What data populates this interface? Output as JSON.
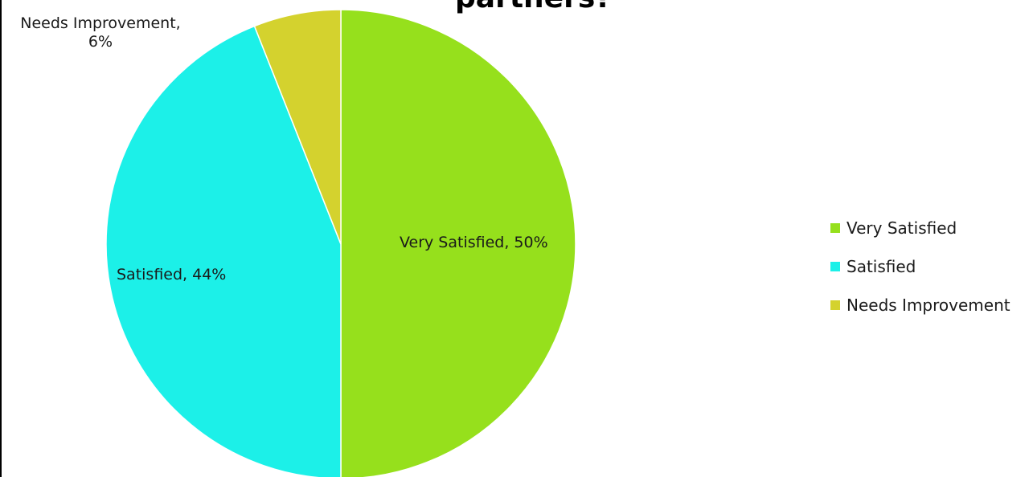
{
  "chart_data": {
    "type": "pie",
    "title": "partners?",
    "slices": [
      {
        "name": "Very Satisfied",
        "value": 50,
        "label": "Very Satisfied, 50%",
        "color": "#96e01c"
      },
      {
        "name": "Satisfied",
        "value": 44,
        "label": "Satisfied, 44%",
        "color": "#1cf0e8"
      },
      {
        "name": "Needs Improvement",
        "value": 6,
        "label_line1": "Needs Improvement,",
        "label_line2": "6%",
        "color": "#d4d22e"
      }
    ],
    "legend": {
      "placement": "right",
      "items": [
        "Very Satisfied",
        "Satisfied",
        "Needs Improvement"
      ]
    }
  }
}
